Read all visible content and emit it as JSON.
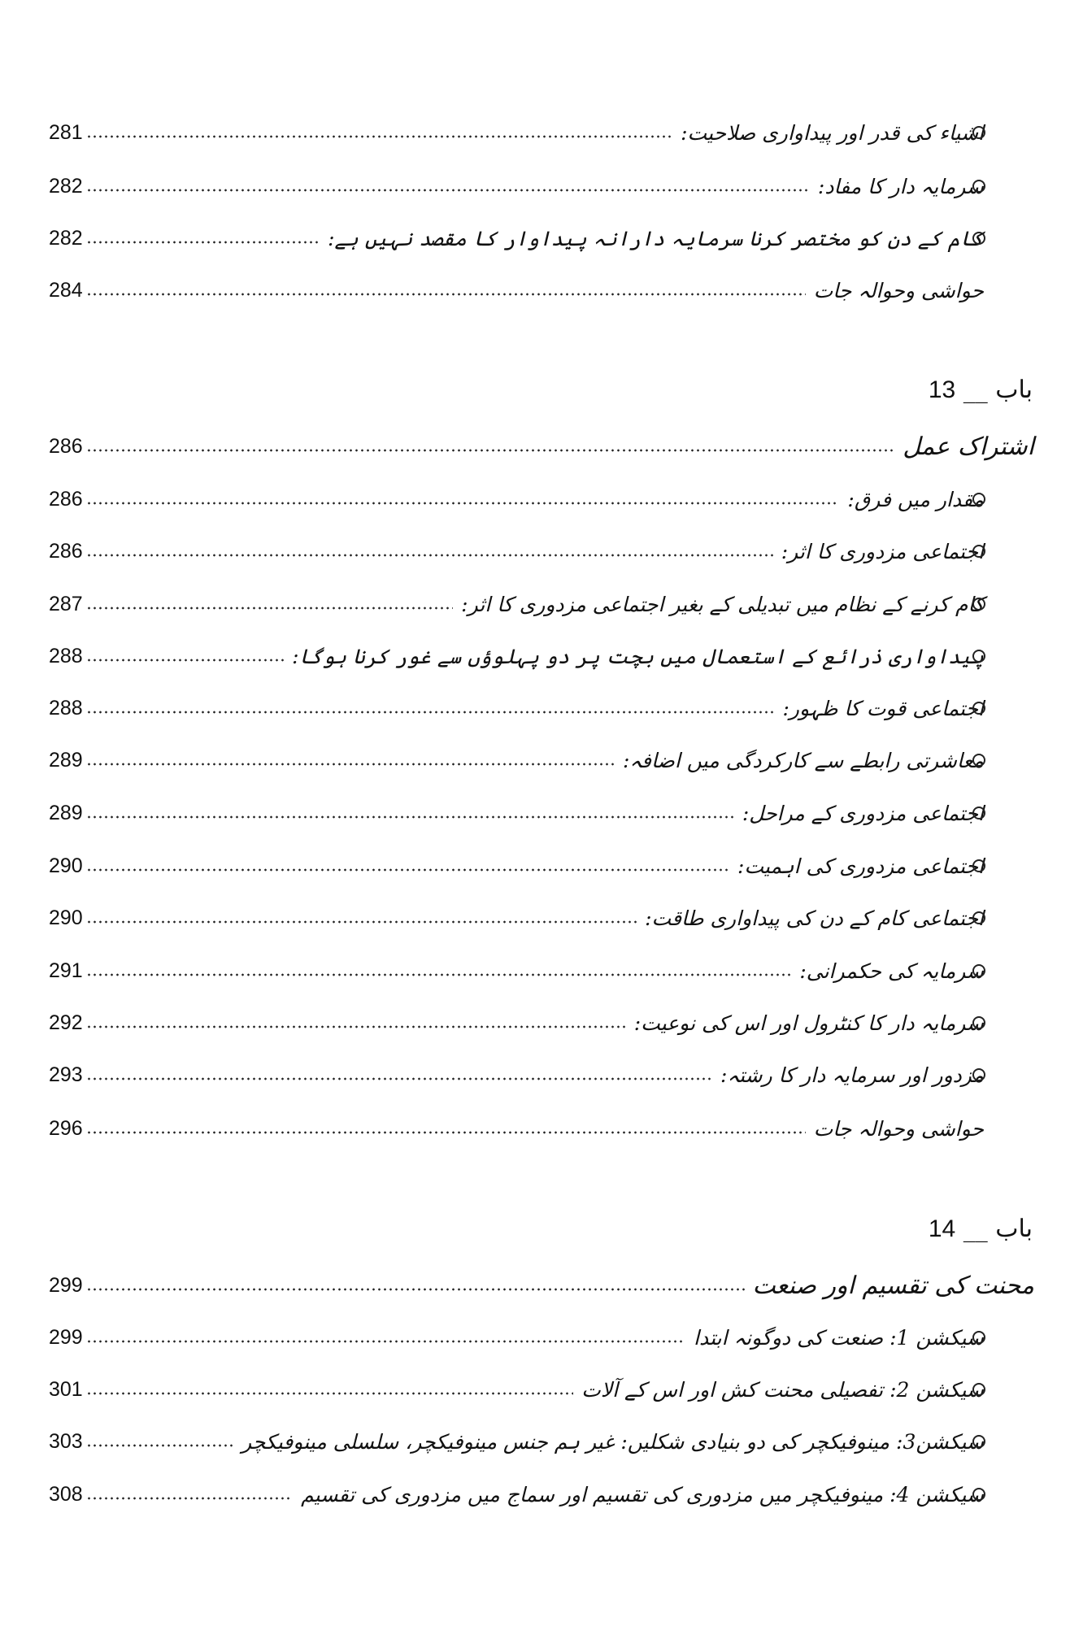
{
  "top_entries": [
    {
      "text": "اشیاء کی قدر اور پیداواری صلاحیت:",
      "page": "281",
      "bullet": true
    },
    {
      "text": "سرمایہ دار کا مفاد:",
      "page": "282",
      "bullet": true
    },
    {
      "text": "کام کے دن کو مختصر کرنا سرمایہ دارانہ پیداوار کا مقصد نہیں ہے:",
      "page": "282",
      "bullet": true
    },
    {
      "text": "حواشی وحوالہ جات",
      "page": "284",
      "bullet": false
    }
  ],
  "chapter13": {
    "label": "باب",
    "number": "13",
    "title": "اشتراک عمل",
    "page": "286",
    "entries": [
      {
        "text": "مقدار میں فرق:",
        "page": "286",
        "bullet": true
      },
      {
        "text": "اجتماعی مزدوری کا اثر:",
        "page": "286",
        "bullet": true
      },
      {
        "text": "کام کرنے کے نظام میں تبدیلی کے بغیر اجتماعی مزدوری کا اثر:",
        "page": "287",
        "bullet": true
      },
      {
        "text": "پیداواری ذرائع کے استعمال میں بچت پر دو پہلوؤں سے غور کرنا ہوگا:",
        "page": "288",
        "bullet": true
      },
      {
        "text": "اجتماعی قوت کا ظہور:",
        "page": "288",
        "bullet": true
      },
      {
        "text": "معاشرتی رابطے سے کارکردگی میں اضافہ:",
        "page": "289",
        "bullet": true
      },
      {
        "text": "اجتماعی مزدوری کے مراحل:",
        "page": "289",
        "bullet": true
      },
      {
        "text": "اجتماعی مزدوری کی اہمیت:",
        "page": "290",
        "bullet": true
      },
      {
        "text": "اجتماعی کام کے دن کی پیداواری طاقت:",
        "page": "290",
        "bullet": true
      },
      {
        "text": "سرمایہ کی حکمرانی:",
        "page": "291",
        "bullet": true
      },
      {
        "text": "سرمایہ دار کا کنٹرول اور اس کی نوعیت:",
        "page": "292",
        "bullet": true
      },
      {
        "text": "مزدور اور سرمایہ دار کا رشتہ:",
        "page": "293",
        "bullet": true
      },
      {
        "text": "حواشی وحوالہ جات",
        "page": "296",
        "bullet": false
      }
    ]
  },
  "chapter14": {
    "label": "باب",
    "number": "14",
    "title": "محنت کی تقسیم اور صنعت",
    "page": "299",
    "entries": [
      {
        "text": "سیکشن 1: صنعت کی دوگونہ ابتدا",
        "page": "299",
        "bullet": true
      },
      {
        "text": "سیکشن 2: تفصیلی محنت کش اور اس کے آلات",
        "page": "301",
        "bullet": true
      },
      {
        "text": "سیکشن3: مینوفیکچر کی دو بنیادی شکلیں: غیر ہم جنس مینوفیکچر، سلسلی مینوفیکچر",
        "page": "303",
        "bullet": true
      },
      {
        "text": "سیکشن 4: مینوفیکچر میں مزدوری کی تقسیم اور سماج میں مزدوری کی تقسیم",
        "page": "308",
        "bullet": true
      }
    ]
  }
}
